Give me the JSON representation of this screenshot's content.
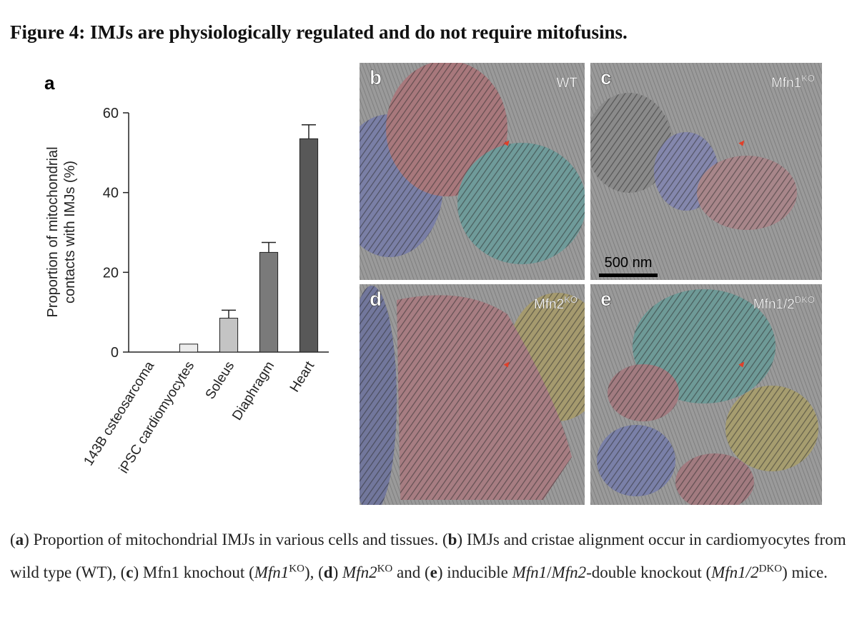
{
  "title": "Figure 4: IMJs are physiologically regulated and do not require mitofusins.",
  "chart_data": {
    "type": "bar",
    "label": "a",
    "y_label": [
      "Proportion of mitochondrial",
      "contacts with IMJs (%)"
    ],
    "categories": [
      "143B csteosarcoma",
      "iPSC cardiomyocytes",
      "Soleus",
      "Diaphragm",
      "Heart"
    ],
    "values": [
      0,
      2,
      8.5,
      25,
      53.5
    ],
    "errors": [
      null,
      null,
      2,
      2.5,
      3.5
    ],
    "colors": [
      "#ffffff",
      "#ececec",
      "#c4c4c4",
      "#7a7a7a",
      "#585858"
    ],
    "ylim": [
      0,
      60
    ],
    "yticks": [
      0,
      20,
      40,
      60
    ]
  },
  "panels": [
    {
      "letter": "b",
      "label": {
        "base": "WT",
        "sup": ""
      }
    },
    {
      "letter": "c",
      "label": {
        "base": "Mfn1",
        "sup": "KO"
      },
      "scale_bar": "500 nm"
    },
    {
      "letter": "d",
      "label": {
        "base": "Mfn2",
        "sup": "KO"
      }
    },
    {
      "letter": "e",
      "label": {
        "base": "Mfn1/2",
        "sup": "DKO"
      }
    }
  ],
  "caption": [
    {
      "text": "(",
      "style": "n"
    },
    {
      "text": "a",
      "style": "b"
    },
    {
      "text": ") Proportion of mitochondrial IMJs in various cells and tissues. (",
      "style": "n"
    },
    {
      "text": "b",
      "style": "b"
    },
    {
      "text": ") IMJs and cristae alignment occur in cardiomyocytes from wild type (WT), (",
      "style": "n"
    },
    {
      "text": "c",
      "style": "b"
    },
    {
      "text": ") Mfn1 knochout (",
      "style": "n"
    },
    {
      "text": "Mfn1",
      "style": "i"
    },
    {
      "text": "KO",
      "style": "sup"
    },
    {
      "text": "), (",
      "style": "n"
    },
    {
      "text": "d",
      "style": "b"
    },
    {
      "text": ") ",
      "style": "n"
    },
    {
      "text": "Mfn2",
      "style": "i"
    },
    {
      "text": "KO",
      "style": "sup"
    },
    {
      "text": " and (",
      "style": "n"
    },
    {
      "text": "e",
      "style": "b"
    },
    {
      "text": ") inducible ",
      "style": "n"
    },
    {
      "text": "Mfn1",
      "style": "i"
    },
    {
      "text": "/",
      "style": "n"
    },
    {
      "text": "Mfn2",
      "style": "i"
    },
    {
      "text": "-double knockout (",
      "style": "n"
    },
    {
      "text": "Mfn1/2",
      "style": "i"
    },
    {
      "text": "DKO",
      "style": "sup"
    },
    {
      "text": ") mice.",
      "style": "n"
    }
  ]
}
